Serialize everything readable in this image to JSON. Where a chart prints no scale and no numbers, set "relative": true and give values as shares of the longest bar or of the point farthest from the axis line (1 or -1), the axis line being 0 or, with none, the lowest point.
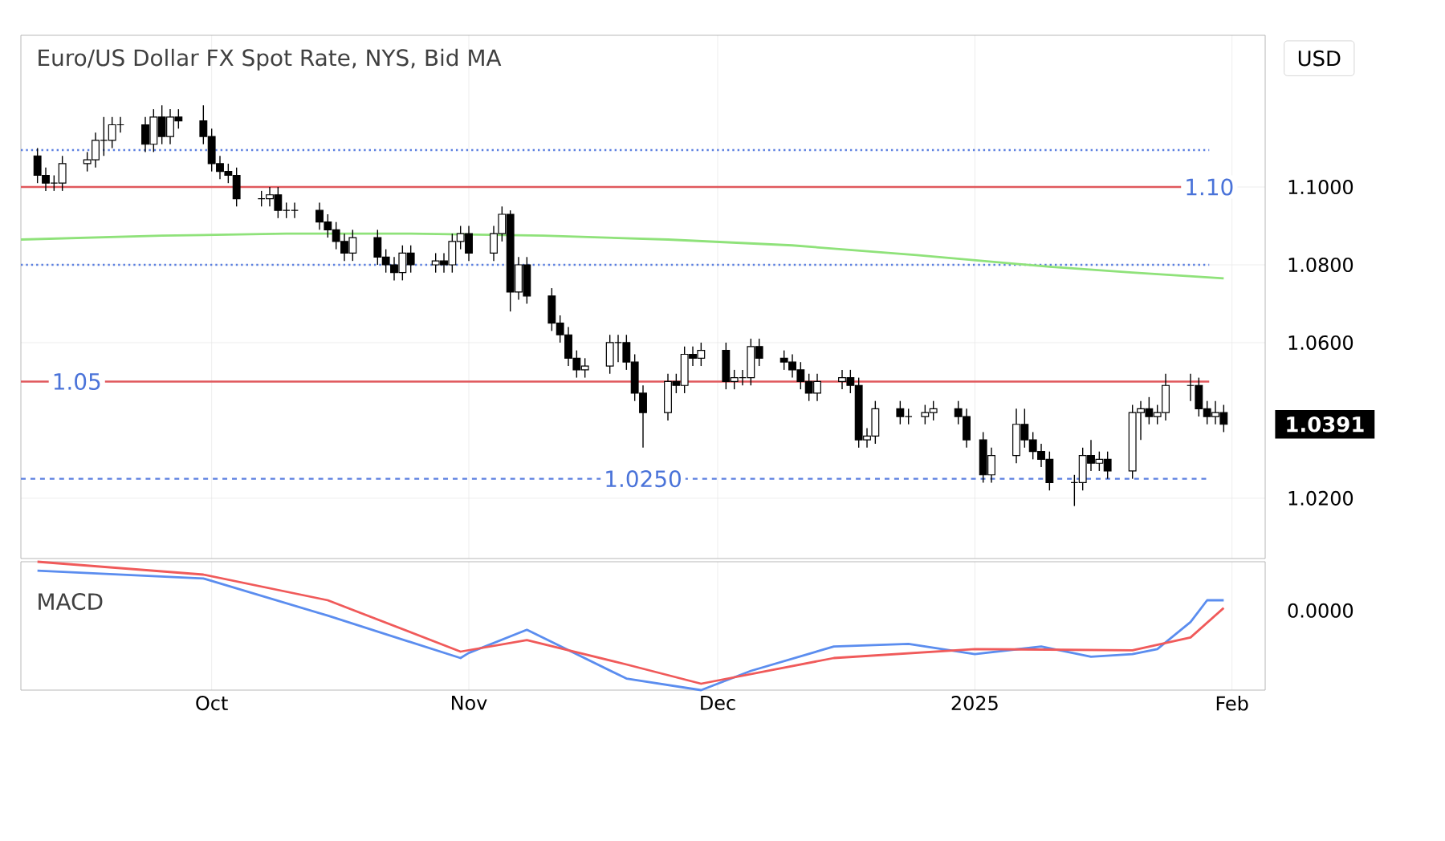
{
  "chart_data": [
    {
      "type": "candlestick",
      "title": "Euro/US Dollar FX Spot Rate, NYS, Bid   MA",
      "ylabel": "USD",
      "grid": true,
      "tick_labels": "y",
      "xlim": [
        "2024-09-08",
        "2025-02-05"
      ],
      "ylim": [
        1.0045,
        1.139
      ],
      "xticks": [
        {
          "value": "2024-10-01",
          "label": null
        },
        {
          "value": "2024-11-01",
          "label": null
        },
        {
          "value": "2024-12-01",
          "label": null
        },
        {
          "value": "2025-01-01",
          "label": null
        },
        {
          "value": "2025-02-01",
          "label": null
        }
      ],
      "yticks": [
        {
          "value": 1.02,
          "label": "1.0200"
        },
        {
          "value": 1.06,
          "label": "1.0600"
        },
        {
          "value": 1.08,
          "label": "1.0800"
        },
        {
          "value": 1.1,
          "label": "1.1000"
        }
      ],
      "x": [
        "2024-09-10",
        "2024-09-11",
        "2024-09-12",
        "2024-09-13",
        "2024-09-16",
        "2024-09-17",
        "2024-09-18",
        "2024-09-19",
        "2024-09-20",
        "2024-09-23",
        "2024-09-24",
        "2024-09-25",
        "2024-09-26",
        "2024-09-27",
        "2024-09-30",
        "2024-10-01",
        "2024-10-02",
        "2024-10-03",
        "2024-10-04",
        "2024-10-07",
        "2024-10-08",
        "2024-10-09",
        "2024-10-10",
        "2024-10-11",
        "2024-10-14",
        "2024-10-15",
        "2024-10-16",
        "2024-10-17",
        "2024-10-18",
        "2024-10-21",
        "2024-10-22",
        "2024-10-23",
        "2024-10-24",
        "2024-10-25",
        "2024-10-28",
        "2024-10-29",
        "2024-10-30",
        "2024-10-31",
        "2024-11-01",
        "2024-11-04",
        "2024-11-05",
        "2024-11-06",
        "2024-11-07",
        "2024-11-08",
        "2024-11-11",
        "2024-11-12",
        "2024-11-13",
        "2024-11-14",
        "2024-11-15",
        "2024-11-18",
        "2024-11-19",
        "2024-11-20",
        "2024-11-21",
        "2024-11-22",
        "2024-11-25",
        "2024-11-26",
        "2024-11-27",
        "2024-11-28",
        "2024-11-29",
        "2024-12-02",
        "2024-12-03",
        "2024-12-04",
        "2024-12-05",
        "2024-12-06",
        "2024-12-09",
        "2024-12-10",
        "2024-12-11",
        "2024-12-12",
        "2024-12-13",
        "2024-12-16",
        "2024-12-17",
        "2024-12-18",
        "2024-12-19",
        "2024-12-20",
        "2024-12-23",
        "2024-12-24",
        "2024-12-26",
        "2024-12-27",
        "2024-12-30",
        "2024-12-31",
        "2025-01-02",
        "2025-01-03",
        "2025-01-06",
        "2025-01-07",
        "2025-01-08",
        "2025-01-09",
        "2025-01-10",
        "2025-01-13",
        "2025-01-14",
        "2025-01-15",
        "2025-01-16",
        "2025-01-17",
        "2025-01-20",
        "2025-01-21",
        "2025-01-22",
        "2025-01-23",
        "2025-01-24",
        "2025-01-27",
        "2025-01-28",
        "2025-01-29",
        "2025-01-30",
        "2025-01-31"
      ],
      "ohlc": [
        [
          1.108,
          1.11,
          1.101,
          1.103
        ],
        [
          1.103,
          1.105,
          1.099,
          1.101
        ],
        [
          1.101,
          1.103,
          1.099,
          1.101
        ],
        [
          1.101,
          1.108,
          1.099,
          1.106
        ],
        [
          1.106,
          1.109,
          1.104,
          1.107
        ],
        [
          1.107,
          1.114,
          1.105,
          1.112
        ],
        [
          1.112,
          1.118,
          1.108,
          1.112
        ],
        [
          1.112,
          1.118,
          1.11,
          1.116
        ],
        [
          1.116,
          1.118,
          1.114,
          1.116
        ],
        [
          1.116,
          1.118,
          1.109,
          1.111
        ],
        [
          1.111,
          1.12,
          1.109,
          1.118
        ],
        [
          1.118,
          1.121,
          1.111,
          1.113
        ],
        [
          1.113,
          1.12,
          1.111,
          1.118
        ],
        [
          1.118,
          1.12,
          1.115,
          1.117
        ],
        [
          1.117,
          1.121,
          1.111,
          1.113
        ],
        [
          1.113,
          1.115,
          1.104,
          1.106
        ],
        [
          1.106,
          1.108,
          1.102,
          1.104
        ],
        [
          1.104,
          1.106,
          1.101,
          1.103
        ],
        [
          1.103,
          1.105,
          1.095,
          1.097
        ],
        [
          1.097,
          1.099,
          1.095,
          1.097
        ],
        [
          1.097,
          1.1,
          1.095,
          1.098
        ],
        [
          1.098,
          1.1,
          1.092,
          1.094
        ],
        [
          1.094,
          1.096,
          1.092,
          1.094
        ],
        [
          1.094,
          1.096,
          1.092,
          1.094
        ],
        [
          1.094,
          1.096,
          1.089,
          1.091
        ],
        [
          1.091,
          1.093,
          1.087,
          1.089
        ],
        [
          1.089,
          1.091,
          1.084,
          1.086
        ],
        [
          1.086,
          1.088,
          1.081,
          1.083
        ],
        [
          1.083,
          1.089,
          1.081,
          1.087
        ],
        [
          1.087,
          1.089,
          1.08,
          1.082
        ],
        [
          1.082,
          1.084,
          1.078,
          1.08
        ],
        [
          1.08,
          1.082,
          1.076,
          1.078
        ],
        [
          1.078,
          1.085,
          1.076,
          1.083
        ],
        [
          1.083,
          1.085,
          1.078,
          1.08
        ],
        [
          1.08,
          1.083,
          1.078,
          1.081
        ],
        [
          1.081,
          1.083,
          1.078,
          1.08
        ],
        [
          1.08,
          1.088,
          1.078,
          1.086
        ],
        [
          1.086,
          1.09,
          1.084,
          1.088
        ],
        [
          1.088,
          1.09,
          1.081,
          1.083
        ],
        [
          1.083,
          1.09,
          1.081,
          1.088
        ],
        [
          1.088,
          1.095,
          1.086,
          1.093
        ],
        [
          1.093,
          1.094,
          1.068,
          1.073
        ],
        [
          1.073,
          1.082,
          1.071,
          1.08
        ],
        [
          1.08,
          1.082,
          1.07,
          1.072
        ],
        [
          1.072,
          1.074,
          1.063,
          1.065
        ],
        [
          1.065,
          1.067,
          1.06,
          1.062
        ],
        [
          1.062,
          1.064,
          1.054,
          1.056
        ],
        [
          1.056,
          1.058,
          1.051,
          1.053
        ],
        [
          1.053,
          1.056,
          1.051,
          1.054
        ],
        [
          1.054,
          1.062,
          1.052,
          1.06
        ],
        [
          1.06,
          1.062,
          1.055,
          1.06
        ],
        [
          1.06,
          1.062,
          1.053,
          1.055
        ],
        [
          1.055,
          1.057,
          1.045,
          1.047
        ],
        [
          1.047,
          1.049,
          1.033,
          1.042
        ],
        [
          1.042,
          1.052,
          1.04,
          1.05
        ],
        [
          1.05,
          1.052,
          1.047,
          1.049
        ],
        [
          1.049,
          1.059,
          1.047,
          1.057
        ],
        [
          1.057,
          1.059,
          1.054,
          1.056
        ],
        [
          1.056,
          1.06,
          1.054,
          1.058
        ],
        [
          1.058,
          1.06,
          1.048,
          1.05
        ],
        [
          1.05,
          1.053,
          1.048,
          1.051
        ],
        [
          1.051,
          1.053,
          1.049,
          1.051
        ],
        [
          1.051,
          1.061,
          1.049,
          1.059
        ],
        [
          1.059,
          1.061,
          1.054,
          1.056
        ],
        [
          1.056,
          1.058,
          1.053,
          1.055
        ],
        [
          1.055,
          1.057,
          1.051,
          1.053
        ],
        [
          1.053,
          1.055,
          1.048,
          1.05
        ],
        [
          1.05,
          1.052,
          1.045,
          1.047
        ],
        [
          1.047,
          1.052,
          1.045,
          1.05
        ],
        [
          1.05,
          1.053,
          1.048,
          1.051
        ],
        [
          1.051,
          1.053,
          1.047,
          1.049
        ],
        [
          1.049,
          1.051,
          1.033,
          1.035
        ],
        [
          1.035,
          1.038,
          1.033,
          1.036
        ],
        [
          1.036,
          1.045,
          1.034,
          1.043
        ],
        [
          1.043,
          1.045,
          1.039,
          1.041
        ],
        [
          1.041,
          1.043,
          1.039,
          1.041
        ],
        [
          1.041,
          1.044,
          1.039,
          1.042
        ],
        [
          1.042,
          1.045,
          1.04,
          1.043
        ],
        [
          1.043,
          1.045,
          1.039,
          1.041
        ],
        [
          1.041,
          1.043,
          1.033,
          1.035
        ],
        [
          1.035,
          1.037,
          1.024,
          1.026
        ],
        [
          1.026,
          1.033,
          1.024,
          1.031
        ],
        [
          1.031,
          1.043,
          1.029,
          1.039
        ],
        [
          1.039,
          1.043,
          1.033,
          1.035
        ],
        [
          1.035,
          1.037,
          1.03,
          1.032
        ],
        [
          1.032,
          1.034,
          1.028,
          1.03
        ],
        [
          1.03,
          1.032,
          1.022,
          1.024
        ],
        [
          1.024,
          1.026,
          1.018,
          1.024
        ],
        [
          1.024,
          1.033,
          1.022,
          1.031
        ],
        [
          1.031,
          1.035,
          1.027,
          1.029
        ],
        [
          1.029,
          1.032,
          1.027,
          1.03
        ],
        [
          1.03,
          1.032,
          1.025,
          1.027
        ],
        [
          1.027,
          1.044,
          1.025,
          1.042
        ],
        [
          1.042,
          1.045,
          1.035,
          1.043
        ],
        [
          1.043,
          1.046,
          1.039,
          1.041
        ],
        [
          1.041,
          1.044,
          1.039,
          1.042
        ],
        [
          1.042,
          1.052,
          1.04,
          1.049
        ],
        [
          1.049,
          1.052,
          1.045,
          1.049
        ],
        [
          1.049,
          1.051,
          1.041,
          1.043
        ],
        [
          1.043,
          1.045,
          1.039,
          1.041
        ],
        [
          1.041,
          1.045,
          1.039,
          1.042
        ],
        [
          1.042,
          1.044,
          1.037,
          1.039
        ]
      ],
      "series": [
        {
          "type": "line",
          "color": "#8fe27a",
          "x": [
            "2024-09-08",
            "2024-09-25",
            "2024-10-10",
            "2024-10-25",
            "2024-11-10",
            "2024-11-25",
            "2024-12-10",
            "2024-12-25",
            "2025-01-10",
            "2025-01-20",
            "2025-01-31"
          ],
          "values": [
            1.0865,
            1.0875,
            1.088,
            1.088,
            1.0875,
            1.0865,
            1.085,
            1.0825,
            1.0795,
            1.078,
            1.0765
          ]
        }
      ],
      "ref_lines": [
        {
          "axis": "y",
          "value": 1.1095,
          "color": "#5b7fe0",
          "line_style": "dotted"
        },
        {
          "axis": "y",
          "value": 1.08,
          "color": "#5b7fe0",
          "line_style": "dotted"
        },
        {
          "axis": "y",
          "value": 1.1,
          "label": "1.10",
          "color": "#e0585c",
          "line_style": "solid"
        },
        {
          "axis": "y",
          "value": 1.05,
          "label": "1.05",
          "color": "#e0585c",
          "line_style": "solid"
        },
        {
          "axis": "y",
          "value": 1.025,
          "label": "1.0250",
          "color": "#5b7fe0",
          "line_style": "dashed"
        }
      ],
      "annotations": [
        "1.0391"
      ]
    },
    {
      "type": "line",
      "title": "MACD",
      "relative": true,
      "grid": "x",
      "tick_labels": "x",
      "xlim": [
        "2024-09-08",
        "2025-02-05"
      ],
      "xticks": [
        {
          "value": "2024-10-01",
          "label": "Oct"
        },
        {
          "value": "2024-11-01",
          "label": "Nov"
        },
        {
          "value": "2024-12-01",
          "label": "Dec"
        },
        {
          "value": "2025-01-01",
          "label": "2025"
        },
        {
          "value": "2025-02-01",
          "label": "Feb"
        }
      ],
      "series": [
        {
          "color": "#5b8def",
          "x": [
            "2024-09-10",
            "2024-09-30",
            "2024-10-15",
            "2024-10-31",
            "2024-11-01",
            "2024-11-08",
            "2024-11-20",
            "2024-11-29",
            "2024-12-05",
            "2024-12-15",
            "2024-12-24",
            "2025-01-01",
            "2025-01-09",
            "2025-01-15",
            "2025-01-20",
            "2025-01-23",
            "2025-01-27",
            "2025-01-29",
            "2025-01-31"
          ],
          "values": [
            0.93,
            0.87,
            0.58,
            0.25,
            0.29,
            0.47,
            0.09,
            0,
            0.15,
            0.34,
            0.36,
            0.28,
            0.34,
            0.26,
            0.28,
            0.32,
            0.53,
            0.7,
            0.7
          ]
        },
        {
          "color": "#f05a5a",
          "x": [
            "2024-09-10",
            "2024-09-30",
            "2024-10-15",
            "2024-10-31",
            "2024-11-08",
            "2024-11-20",
            "2024-11-29",
            "2024-12-15",
            "2025-01-01",
            "2025-01-20",
            "2025-01-27",
            "2025-01-31"
          ],
          "values": [
            1,
            0.9,
            0.7,
            0.3,
            0.39,
            0.2,
            0.05,
            0.25,
            0.32,
            0.31,
            0.41,
            0.64
          ]
        }
      ],
      "annotations": [
        "0.0000"
      ]
    }
  ]
}
